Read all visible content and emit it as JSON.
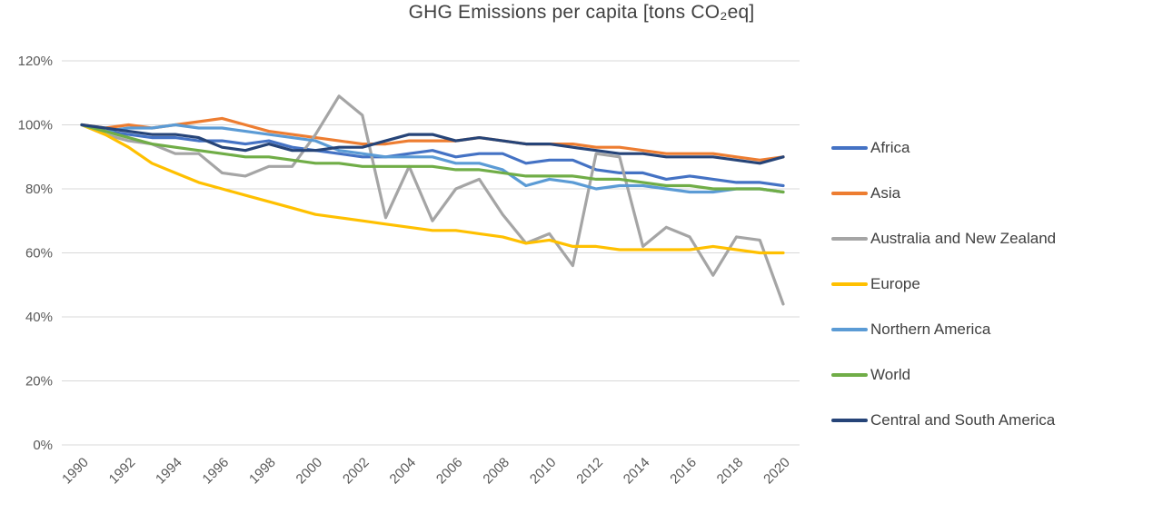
{
  "chart_data": {
    "type": "line",
    "title": "GHG Emissions per capita [tons CO₂eq]",
    "xlabel": "",
    "ylabel": "",
    "ylim": [
      0,
      120
    ],
    "yticks": [
      0,
      20,
      40,
      60,
      80,
      100,
      120
    ],
    "ytick_suffix": "%",
    "grid": "horizontal",
    "legend_position": "right",
    "x": [
      1990,
      1991,
      1992,
      1993,
      1994,
      1995,
      1996,
      1997,
      1998,
      1999,
      2000,
      2001,
      2002,
      2003,
      2004,
      2005,
      2006,
      2007,
      2008,
      2009,
      2010,
      2011,
      2012,
      2013,
      2014,
      2015,
      2016,
      2017,
      2018,
      2019,
      2020
    ],
    "xtick_labels": [
      "1990",
      "1992",
      "1994",
      "1996",
      "1998",
      "2000",
      "2002",
      "2004",
      "2006",
      "2008",
      "2010",
      "2012",
      "2014",
      "2016",
      "2018",
      "2020"
    ],
    "series": [
      {
        "name": "Africa",
        "color": "#4472C4",
        "values": [
          100,
          98,
          97,
          96,
          96,
          95,
          95,
          94,
          95,
          93,
          92,
          91,
          90,
          90,
          91,
          92,
          90,
          91,
          91,
          88,
          89,
          89,
          86,
          85,
          85,
          83,
          84,
          83,
          82,
          82,
          81
        ]
      },
      {
        "name": "Asia",
        "color": "#ED7D31",
        "values": [
          100,
          99,
          100,
          99,
          100,
          101,
          102,
          100,
          98,
          97,
          96,
          95,
          94,
          94,
          95,
          95,
          95,
          96,
          95,
          94,
          94,
          94,
          93,
          93,
          92,
          91,
          91,
          91,
          90,
          89,
          90
        ]
      },
      {
        "name": "Australia and New Zealand",
        "color": "#A5A5A5",
        "values": [
          100,
          97,
          95,
          94,
          91,
          91,
          85,
          84,
          87,
          87,
          97,
          109,
          103,
          71,
          87,
          70,
          80,
          83,
          72,
          63,
          66,
          56,
          91,
          90,
          62,
          68,
          65,
          53,
          65,
          64,
          44
        ]
      },
      {
        "name": "Europe",
        "color": "#FFC000",
        "values": [
          100,
          97,
          93,
          88,
          85,
          82,
          80,
          78,
          76,
          74,
          72,
          71,
          70,
          69,
          68,
          67,
          67,
          66,
          65,
          63,
          64,
          62,
          62,
          61,
          61,
          61,
          61,
          62,
          61,
          60,
          60
        ]
      },
      {
        "name": "Northern America",
        "color": "#5B9BD5",
        "values": [
          100,
          98,
          99,
          99,
          100,
          99,
          99,
          98,
          97,
          96,
          95,
          92,
          91,
          90,
          90,
          90,
          88,
          88,
          86,
          81,
          83,
          82,
          80,
          81,
          81,
          80,
          79,
          79,
          80,
          80,
          79
        ]
      },
      {
        "name": "World",
        "color": "#70AD47",
        "values": [
          100,
          98,
          96,
          94,
          93,
          92,
          91,
          90,
          90,
          89,
          88,
          88,
          87,
          87,
          87,
          87,
          86,
          86,
          85,
          84,
          84,
          84,
          83,
          83,
          82,
          81,
          81,
          80,
          80,
          80,
          79
        ]
      },
      {
        "name": "Central and South America",
        "color": "#264478",
        "values": [
          100,
          99,
          98,
          97,
          97,
          96,
          93,
          92,
          94,
          92,
          92,
          93,
          93,
          95,
          97,
          97,
          95,
          96,
          95,
          94,
          94,
          93,
          92,
          91,
          91,
          90,
          90,
          90,
          89,
          88,
          90
        ]
      }
    ]
  }
}
